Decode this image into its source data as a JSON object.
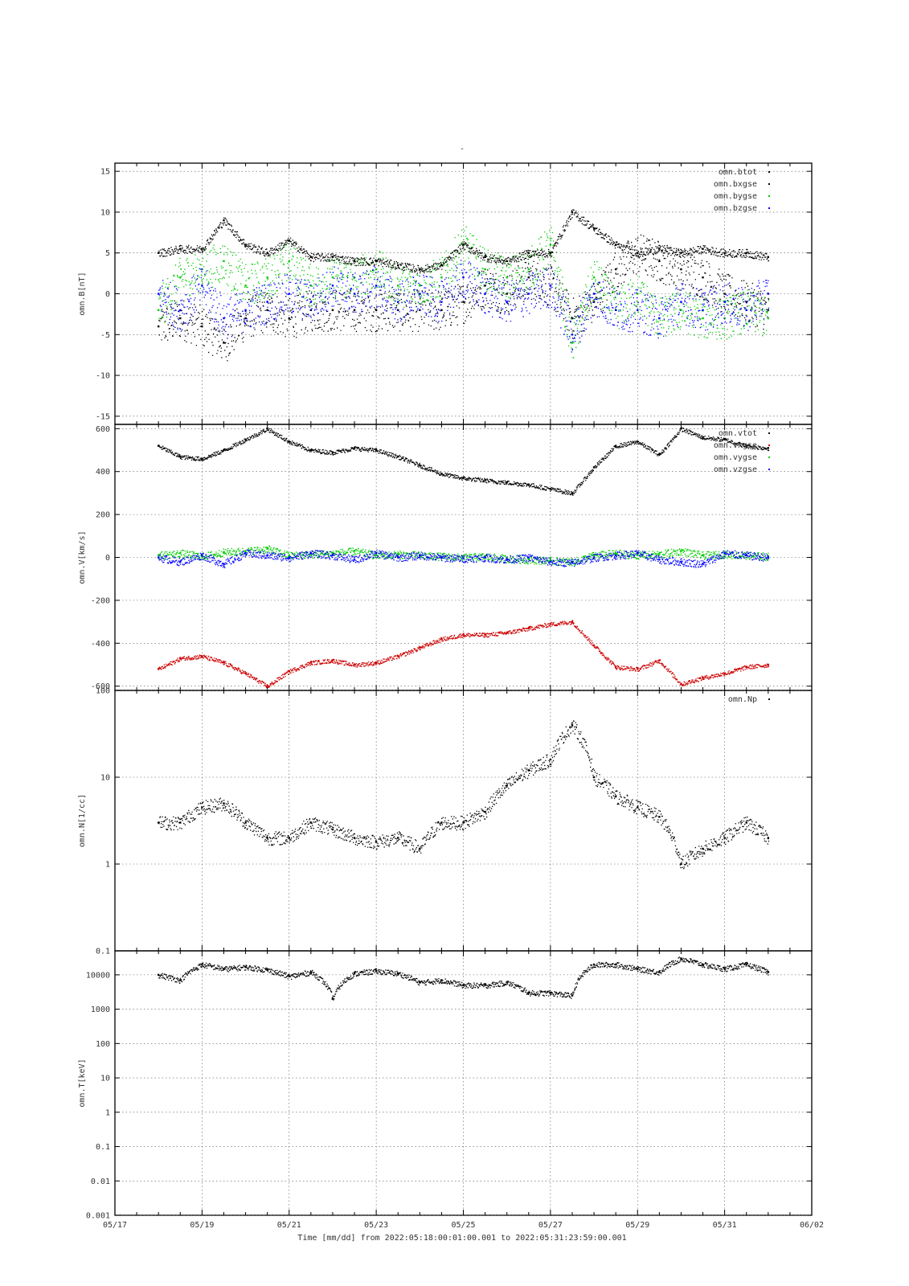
{
  "figure": {
    "title": "-",
    "xlabel": "Time [mm/dd]  from 2022:05:18:00:01:00.001  to  2022:05:31:23:59:00.001",
    "x_ticks": [
      "05/17",
      "05/19",
      "05/21",
      "05/23",
      "05/25",
      "05/27",
      "05/29",
      "05/31",
      "06/02"
    ],
    "x_range_days": [
      0,
      16
    ],
    "data_range_days": [
      1.0,
      15.0
    ]
  },
  "chart_data": [
    {
      "type": "scatter",
      "panel": "B",
      "ylabel": "omn.B[nT]",
      "yscale": "linear",
      "ylim": [
        -16,
        16
      ],
      "yticks": [
        -15,
        -10,
        -5,
        0,
        5,
        10,
        15
      ],
      "ytick_labels": [
        "-15",
        "-10",
        "-5",
        "0",
        "5",
        "10",
        "15"
      ],
      "grid": true,
      "legend_position": "top-right",
      "x": [
        1,
        1.5,
        2,
        2.5,
        3,
        3.5,
        4,
        4.5,
        5,
        5.5,
        6,
        6.5,
        7,
        7.5,
        8,
        8.5,
        9,
        9.5,
        10,
        10.5,
        11,
        11.5,
        12,
        12.5,
        13,
        13.5,
        14,
        14.5,
        15
      ],
      "series": [
        {
          "name": "omn.btot",
          "color": "#000000",
          "values": [
            5,
            5.5,
            5.5,
            9,
            6,
            5,
            6.5,
            4.5,
            4.5,
            4,
            4,
            3.5,
            3,
            3.5,
            6,
            4.5,
            4,
            5,
            5,
            10,
            8,
            6,
            5,
            5.5,
            5,
            5.5,
            5,
            5,
            4.5
          ]
        },
        {
          "name": "omn.bxgse",
          "color": "#000000",
          "values": [
            -4,
            -3,
            -4,
            -6,
            -3,
            -2,
            -3,
            -2,
            -2,
            -2,
            -2,
            -2,
            -2,
            -2,
            -1,
            1,
            0,
            2,
            1,
            -3,
            -1,
            3,
            5,
            4,
            3,
            2,
            0,
            -1,
            -2
          ]
        },
        {
          "name": "omn.bygse",
          "color": "#00cc00",
          "values": [
            -2,
            2,
            3,
            4,
            1,
            2,
            4,
            1,
            2,
            2,
            3,
            1,
            1,
            2,
            6,
            3,
            2,
            3,
            6,
            -6,
            2,
            -2,
            0,
            -3,
            -2,
            -3,
            -3,
            -2,
            -3
          ]
        },
        {
          "name": "omn.bzgse",
          "color": "#0000ff",
          "values": [
            0,
            -2,
            1,
            -3,
            -2,
            -1,
            0,
            -1,
            1,
            0,
            1,
            -1,
            0,
            -1,
            2,
            0,
            -1,
            0,
            1,
            -5,
            0,
            -2,
            -2,
            -3,
            -1,
            -2,
            -1,
            -2,
            0
          ]
        }
      ]
    },
    {
      "type": "scatter",
      "panel": "V",
      "ylabel": "omn.V[km/s]",
      "yscale": "linear",
      "ylim": [
        -620,
        620
      ],
      "yticks": [
        -600,
        -400,
        -200,
        0,
        200,
        400,
        600
      ],
      "ytick_labels": [
        "-600",
        "-400",
        "-200",
        "0",
        "200",
        "400",
        "600"
      ],
      "grid": true,
      "legend_position": "top-right",
      "x": [
        1,
        1.5,
        2,
        2.5,
        3,
        3.5,
        4,
        4.5,
        5,
        5.5,
        6,
        6.5,
        7,
        7.5,
        8,
        8.5,
        9,
        9.5,
        10,
        10.5,
        11,
        11.5,
        12,
        12.5,
        13,
        13.5,
        14,
        14.5,
        15
      ],
      "series": [
        {
          "name": "omn.vtot",
          "color": "#000000",
          "values": [
            520,
            470,
            460,
            500,
            550,
            600,
            540,
            500,
            490,
            510,
            500,
            470,
            430,
            390,
            370,
            360,
            350,
            340,
            320,
            300,
            420,
            520,
            540,
            480,
            600,
            560,
            550,
            520,
            510
          ]
        },
        {
          "name": "omn.vxgse",
          "color": "#cc0000",
          "values": [
            -520,
            -470,
            -460,
            -490,
            -540,
            -600,
            -530,
            -490,
            -480,
            -500,
            -490,
            -460,
            -420,
            -380,
            -360,
            -360,
            -350,
            -330,
            -310,
            -300,
            -410,
            -510,
            -520,
            -480,
            -590,
            -560,
            -540,
            -510,
            -500
          ]
        },
        {
          "name": "omn.vygse",
          "color": "#00cc00",
          "values": [
            10,
            20,
            5,
            25,
            30,
            40,
            10,
            15,
            20,
            30,
            10,
            15,
            10,
            5,
            0,
            5,
            -5,
            -10,
            -15,
            -20,
            10,
            20,
            10,
            15,
            30,
            10,
            15,
            10,
            5
          ]
        },
        {
          "name": "omn.vzgse",
          "color": "#0000ff",
          "values": [
            0,
            -20,
            10,
            -30,
            20,
            10,
            0,
            20,
            10,
            -10,
            20,
            0,
            10,
            0,
            -5,
            0,
            -10,
            0,
            -20,
            -25,
            0,
            10,
            20,
            -10,
            -20,
            -30,
            20,
            10,
            0
          ]
        }
      ]
    },
    {
      "type": "scatter",
      "panel": "N",
      "ylabel": "omn.N[1/cc]",
      "yscale": "log",
      "ylim": [
        0.1,
        100
      ],
      "yticks": [
        0.1,
        1,
        10,
        100
      ],
      "ytick_labels": [
        "0.1",
        "1",
        "10",
        "100"
      ],
      "grid": true,
      "legend_position": "top-right",
      "x": [
        1,
        1.5,
        2,
        2.5,
        3,
        3.5,
        4,
        4.5,
        5,
        5.5,
        6,
        6.5,
        7,
        7.5,
        8,
        8.5,
        9,
        9.5,
        10,
        10.5,
        11,
        11.5,
        12,
        12.5,
        13,
        13.5,
        14,
        14.5,
        15
      ],
      "series": [
        {
          "name": "omn.Np",
          "color": "#000000",
          "values": [
            3,
            3,
            4.5,
            5,
            3,
            2,
            2,
            3,
            2.5,
            2,
            1.8,
            2,
            1.5,
            3,
            3,
            4,
            8,
            12,
            16,
            40,
            10,
            6,
            4.5,
            3.5,
            1,
            1.5,
            2,
            3,
            2
          ]
        }
      ]
    },
    {
      "type": "scatter",
      "panel": "T",
      "ylabel": "omn.T[keV]",
      "yscale": "log",
      "ylim": [
        0.001,
        50000
      ],
      "yticks": [
        0.001,
        0.01,
        0.1,
        1,
        10,
        100,
        1000,
        10000
      ],
      "ytick_labels": [
        "0.001",
        "0.01",
        "0.1",
        "1",
        "10",
        "100",
        "1000",
        "10000"
      ],
      "grid": true,
      "legend_position": "none",
      "x": [
        1,
        1.5,
        2,
        2.5,
        3,
        3.5,
        4,
        4.5,
        5,
        5.5,
        6,
        6.5,
        7,
        7.5,
        8,
        8.5,
        9,
        9.5,
        10,
        10.5,
        11,
        11.5,
        12,
        12.5,
        13,
        13.5,
        14,
        14.5,
        15
      ],
      "series": [
        {
          "name": "",
          "color": "#000000",
          "values": [
            10000,
            7000,
            20000,
            15000,
            17000,
            14000,
            9000,
            12000,
            2000,
            11000,
            13000,
            11000,
            6000,
            7000,
            5000,
            5000,
            6000,
            3000,
            3000,
            2500,
            20000,
            20000,
            15000,
            12000,
            30000,
            20000,
            15000,
            20000,
            12000
          ]
        }
      ]
    }
  ]
}
